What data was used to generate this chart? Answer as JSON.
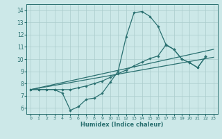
{
  "xlabel": "Humidex (Indice chaleur)",
  "bg_color": "#cce8e8",
  "grid_color": "#aacccc",
  "line_color": "#2a7070",
  "marker": "D",
  "markersize": 1.8,
  "linewidth": 0.9,
  "xlim": [
    -0.5,
    23.5
  ],
  "ylim": [
    5.5,
    14.5
  ],
  "xticks": [
    0,
    1,
    2,
    3,
    4,
    5,
    6,
    7,
    8,
    9,
    10,
    11,
    12,
    13,
    14,
    15,
    16,
    17,
    18,
    19,
    20,
    21,
    22,
    23
  ],
  "yticks": [
    6,
    7,
    8,
    9,
    10,
    11,
    12,
    13,
    14
  ],
  "lines": [
    {
      "x": [
        0,
        1,
        2,
        3,
        4,
        5,
        6,
        7,
        8,
        9,
        10,
        11,
        12,
        13,
        14,
        15,
        16,
        17,
        18,
        19,
        20,
        21,
        22
      ],
      "y": [
        7.5,
        7.5,
        7.5,
        7.5,
        7.2,
        5.8,
        6.1,
        6.7,
        6.8,
        7.2,
        8.1,
        9.0,
        11.8,
        13.8,
        13.9,
        13.5,
        12.7,
        11.2,
        10.8,
        10.0,
        9.7,
        9.3,
        10.2
      ]
    },
    {
      "x": [
        0,
        23
      ],
      "y": [
        7.5,
        10.15
      ],
      "no_marker": true
    },
    {
      "x": [
        0,
        23
      ],
      "y": [
        7.5,
        10.8
      ],
      "no_marker": true
    },
    {
      "x": [
        0,
        1,
        2,
        3,
        4,
        5,
        6,
        7,
        8,
        9,
        10,
        11,
        12,
        13,
        14,
        15,
        16,
        17,
        18,
        19,
        20,
        21,
        22
      ],
      "y": [
        7.5,
        7.5,
        7.5,
        7.5,
        7.5,
        7.5,
        7.65,
        7.8,
        8.0,
        8.2,
        8.5,
        8.8,
        9.1,
        9.45,
        9.75,
        10.05,
        10.25,
        11.15,
        10.8,
        10.0,
        9.7,
        9.3,
        10.2
      ]
    }
  ]
}
